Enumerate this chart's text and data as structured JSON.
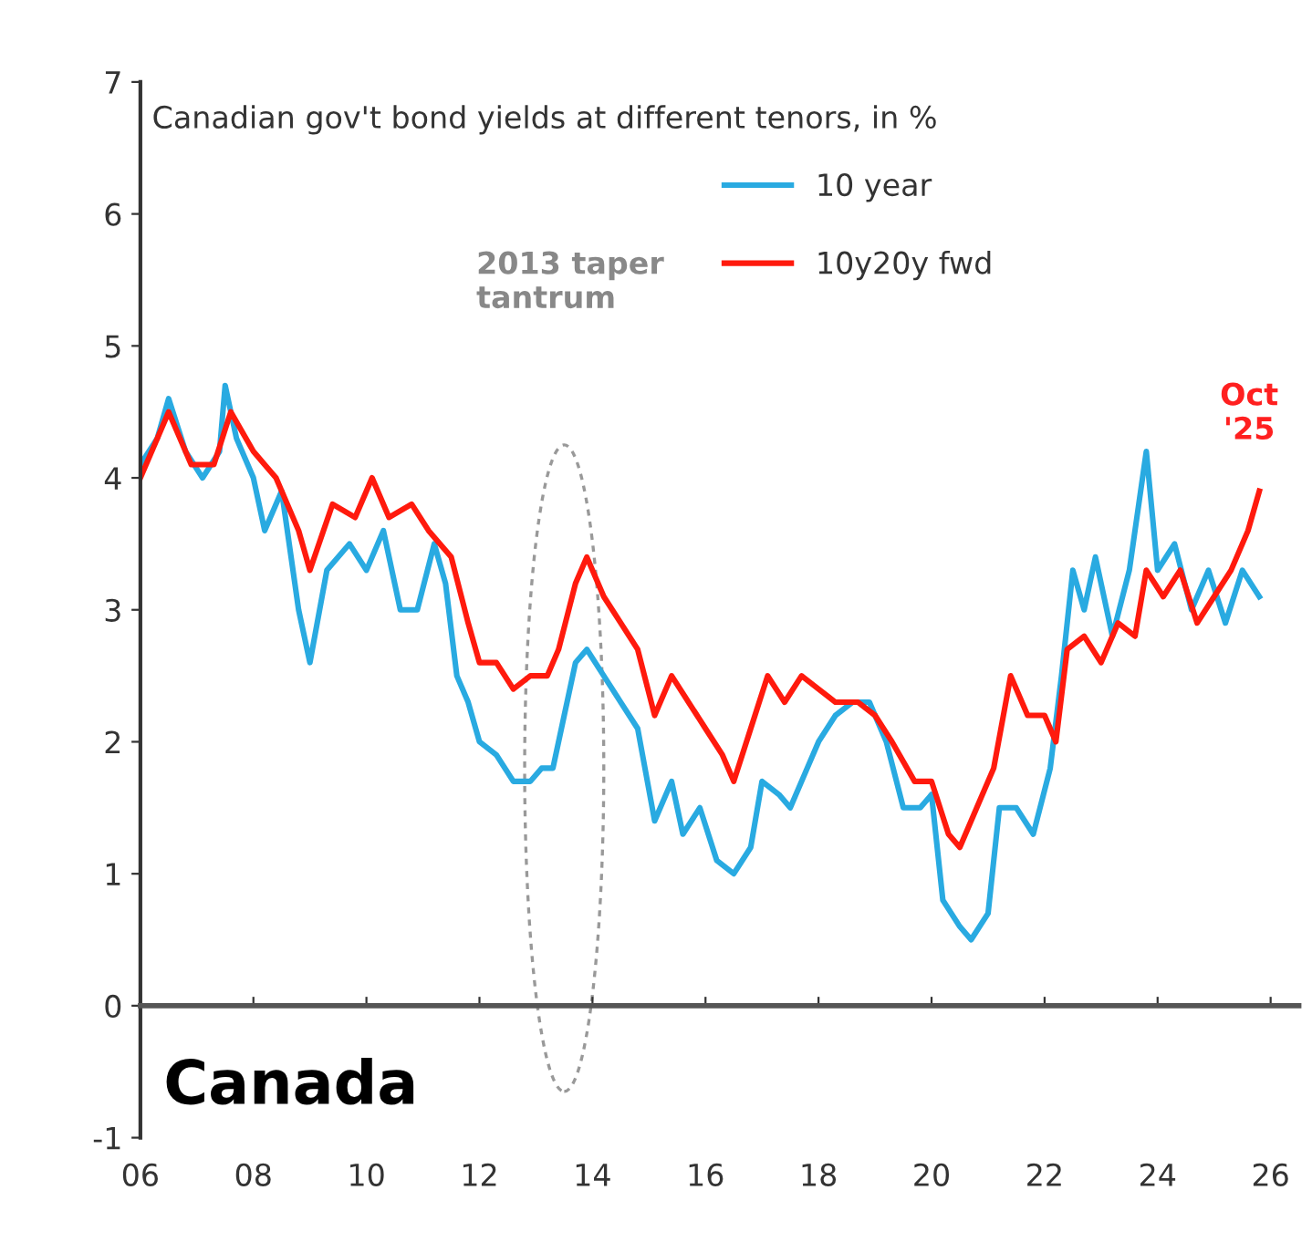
{
  "chart_data": {
    "type": "line",
    "title": "Canadian gov't bond yields at different tenors, in %",
    "annotations": [
      "2013 taper\ntantrum",
      {
        "text": "Oct\n'25",
        "x": 2025.8,
        "y": 3.9
      },
      "Canada"
    ],
    "series": [
      {
        "name": "10 year",
        "color": "#29aae1",
        "x": [
          2006.0,
          2006.3,
          2006.5,
          2006.8,
          2007.1,
          2007.4,
          2007.5,
          2007.7,
          2008.0,
          2008.2,
          2008.5,
          2008.8,
          2009.0,
          2009.3,
          2009.7,
          2010.0,
          2010.3,
          2010.6,
          2010.9,
          2011.2,
          2011.4,
          2011.6,
          2011.8,
          2012.0,
          2012.3,
          2012.6,
          2012.9,
          2013.1,
          2013.3,
          2013.5,
          2013.7,
          2013.9,
          2014.2,
          2014.5,
          2014.8,
          2015.1,
          2015.4,
          2015.6,
          2015.9,
          2016.2,
          2016.5,
          2016.8,
          2017.0,
          2017.3,
          2017.5,
          2017.8,
          2018.0,
          2018.3,
          2018.6,
          2018.9,
          2019.2,
          2019.5,
          2019.8,
          2020.0,
          2020.2,
          2020.5,
          2020.7,
          2021.0,
          2021.2,
          2021.5,
          2021.8,
          2022.1,
          2022.3,
          2022.5,
          2022.7,
          2022.9,
          2023.2,
          2023.5,
          2023.8,
          2024.0,
          2024.3,
          2024.6,
          2024.9,
          2025.2,
          2025.5,
          2025.8
        ],
        "values": [
          4.1,
          4.3,
          4.6,
          4.2,
          4.0,
          4.2,
          4.7,
          4.3,
          4.0,
          3.6,
          3.9,
          3.0,
          2.6,
          3.3,
          3.5,
          3.3,
          3.6,
          3.0,
          3.0,
          3.5,
          3.2,
          2.5,
          2.3,
          2.0,
          1.9,
          1.7,
          1.7,
          1.8,
          1.8,
          2.2,
          2.6,
          2.7,
          2.5,
          2.3,
          2.1,
          1.4,
          1.7,
          1.3,
          1.5,
          1.1,
          1.0,
          1.2,
          1.7,
          1.6,
          1.5,
          1.8,
          2.0,
          2.2,
          2.3,
          2.3,
          2.0,
          1.5,
          1.5,
          1.6,
          0.8,
          0.6,
          0.5,
          0.7,
          1.5,
          1.5,
          1.3,
          1.8,
          2.5,
          3.3,
          3.0,
          3.4,
          2.8,
          3.3,
          4.2,
          3.3,
          3.5,
          3.0,
          3.3,
          2.9,
          3.3,
          3.1
        ]
      },
      {
        "name": "10y20y fwd",
        "color": "#ff1a0d",
        "x": [
          2006.0,
          2006.5,
          2006.9,
          2007.3,
          2007.6,
          2008.0,
          2008.4,
          2008.8,
          2009.0,
          2009.4,
          2009.8,
          2010.1,
          2010.4,
          2010.8,
          2011.1,
          2011.5,
          2011.8,
          2012.0,
          2012.3,
          2012.6,
          2012.9,
          2013.2,
          2013.4,
          2013.7,
          2013.9,
          2014.2,
          2014.5,
          2014.8,
          2015.1,
          2015.4,
          2015.7,
          2016.0,
          2016.3,
          2016.5,
          2016.8,
          2017.1,
          2017.4,
          2017.7,
          2018.0,
          2018.3,
          2018.7,
          2019.0,
          2019.3,
          2019.7,
          2020.0,
          2020.3,
          2020.5,
          2020.8,
          2021.1,
          2021.4,
          2021.7,
          2022.0,
          2022.2,
          2022.4,
          2022.7,
          2023.0,
          2023.3,
          2023.6,
          2023.8,
          2024.1,
          2024.4,
          2024.7,
          2025.0,
          2025.3,
          2025.6,
          2025.8
        ],
        "values": [
          4.0,
          4.5,
          4.1,
          4.1,
          4.5,
          4.2,
          4.0,
          3.6,
          3.3,
          3.8,
          3.7,
          4.0,
          3.7,
          3.8,
          3.6,
          3.4,
          2.9,
          2.6,
          2.6,
          2.4,
          2.5,
          2.5,
          2.7,
          3.2,
          3.4,
          3.1,
          2.9,
          2.7,
          2.2,
          2.5,
          2.3,
          2.1,
          1.9,
          1.7,
          2.1,
          2.5,
          2.3,
          2.5,
          2.4,
          2.3,
          2.3,
          2.2,
          2.0,
          1.7,
          1.7,
          1.3,
          1.2,
          1.5,
          1.8,
          2.5,
          2.2,
          2.2,
          2.0,
          2.7,
          2.8,
          2.6,
          2.9,
          2.8,
          3.3,
          3.1,
          3.3,
          2.9,
          3.1,
          3.3,
          3.6,
          3.9
        ]
      }
    ],
    "xlim": [
      2006,
      2026.5
    ],
    "xticks": [
      {
        "value": 2006,
        "label": "06"
      },
      {
        "value": 2008,
        "label": "08"
      },
      {
        "value": 2010,
        "label": "10"
      },
      {
        "value": 2012,
        "label": "12"
      },
      {
        "value": 2014,
        "label": "14"
      },
      {
        "value": 2016,
        "label": "16"
      },
      {
        "value": 2018,
        "label": "18"
      },
      {
        "value": 2020,
        "label": "20"
      },
      {
        "value": 2022,
        "label": "22"
      },
      {
        "value": 2024,
        "label": "24"
      },
      {
        "value": 2026,
        "label": "26"
      }
    ],
    "ylim": [
      -1,
      7
    ],
    "yticks": [
      -1,
      0,
      1,
      2,
      3,
      4,
      5,
      6,
      7
    ],
    "legend": "top",
    "marker": "none",
    "line_style": "solid"
  }
}
